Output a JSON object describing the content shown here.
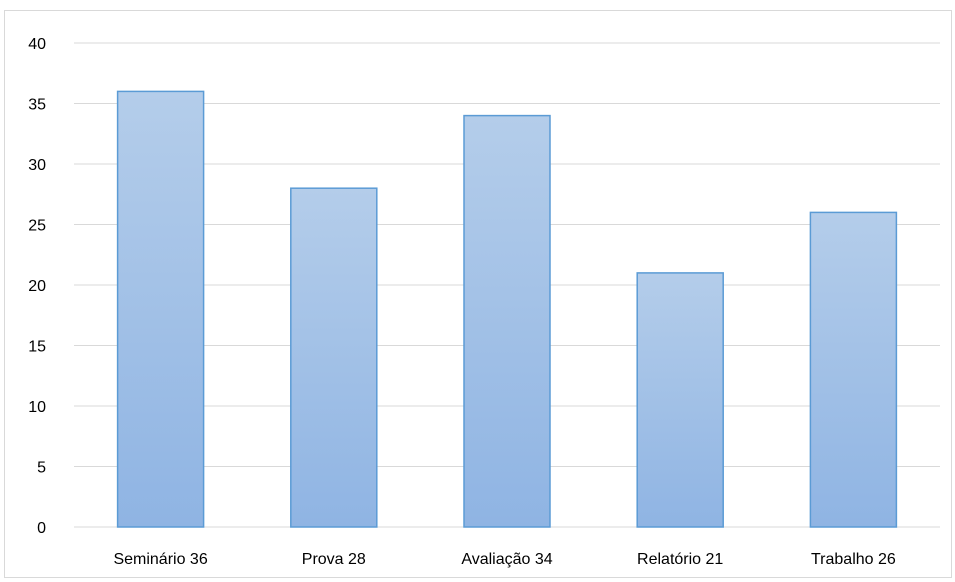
{
  "chart_data": {
    "type": "bar",
    "categories": [
      "Seminário 36",
      "Prova 28",
      "Avaliação 34",
      "Relatório 21",
      "Trabalho 26"
    ],
    "values": [
      36,
      28,
      34,
      21,
      26
    ],
    "title": "",
    "xlabel": "",
    "ylabel": "",
    "ylim": [
      0,
      40
    ],
    "yticks": [
      "0",
      "5",
      "10",
      "15",
      "20",
      "25",
      "30",
      "35",
      "40"
    ],
    "grid": true,
    "legend": "none",
    "colors": {
      "bar_top": "#b4cdea",
      "bar_bottom": "#8fb4e3",
      "bar_border": "#5b9bd5",
      "grid": "#d9d9d9"
    }
  }
}
